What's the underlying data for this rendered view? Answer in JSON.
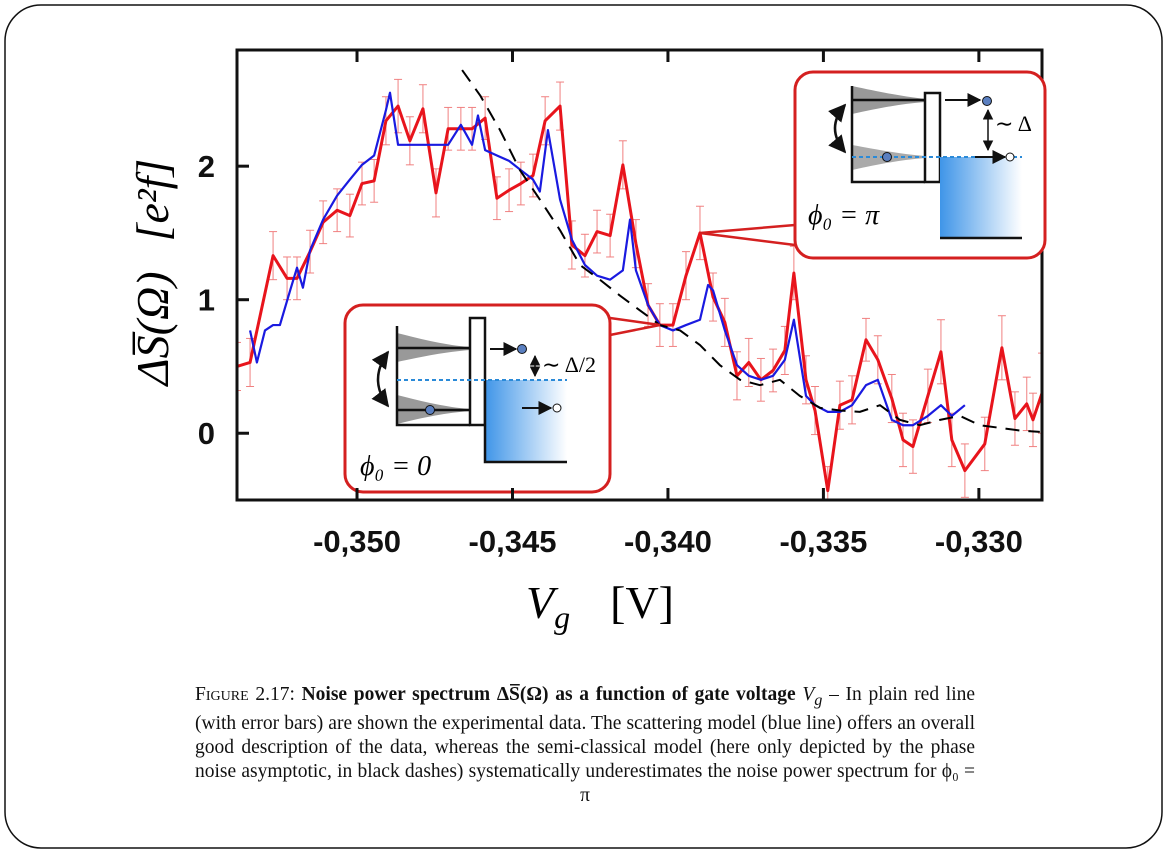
{
  "chart_data": {
    "type": "line",
    "xlabel": [
      "V",
      "g",
      "[V]"
    ],
    "ylabel": [
      "ΔS̅(Ω)",
      "[e²f]"
    ],
    "xlim": [
      -0.35386,
      -0.32797
    ],
    "ylim": [
      -0.5,
      2.87
    ],
    "xticks": [
      {
        "value": -0.35,
        "label": "-0,350"
      },
      {
        "value": -0.345,
        "label": "-0,345"
      },
      {
        "value": -0.34,
        "label": "-0,340"
      },
      {
        "value": -0.335,
        "label": "-0,335"
      },
      {
        "value": -0.33,
        "label": "-0,330"
      }
    ],
    "yticks": [
      0,
      1,
      2
    ],
    "annotations": [
      "∼ Δ",
      "ϕ₀ = π",
      "∼ Δ/2",
      "ϕ₀ = 0"
    ],
    "series": [
      {
        "color": "#e8141c",
        "error_color": "#f08080",
        "x": [
          -0.35386,
          -0.35344,
          -0.3527,
          -0.35225,
          -0.35193,
          -0.35151,
          -0.35109,
          -0.35064,
          -0.35023,
          -0.34984,
          -0.34945,
          -0.34907,
          -0.34868,
          -0.3483,
          -0.34788,
          -0.34746,
          -0.34707,
          -0.34666,
          -0.3463,
          -0.34588,
          -0.3455,
          -0.34511,
          -0.34473,
          -0.34434,
          -0.34395,
          -0.34347,
          -0.34309,
          -0.34267,
          -0.34228,
          -0.34186,
          -0.34145,
          -0.34103,
          -0.34064,
          -0.34026,
          -0.33984,
          -0.33942,
          -0.33897,
          -0.33855,
          -0.33817,
          -0.33778,
          -0.3374,
          -0.33701,
          -0.33662,
          -0.33624,
          -0.33595,
          -0.33556,
          -0.33527,
          -0.33486,
          -0.33447,
          -0.33408,
          -0.33363,
          -0.33325,
          -0.3328,
          -0.33244,
          -0.33212,
          -0.33164,
          -0.33122,
          -0.33087,
          -0.33045,
          -0.32981,
          -0.32926,
          -0.32884,
          -0.32846,
          -0.32826,
          -0.32797
        ],
        "values": [
          0.5,
          0.53,
          1.33,
          1.16,
          1.16,
          1.36,
          1.58,
          1.67,
          1.63,
          1.87,
          1.89,
          2.34,
          2.45,
          2.19,
          2.43,
          1.8,
          2.28,
          2.28,
          2.28,
          2.36,
          1.76,
          1.82,
          1.87,
          1.93,
          2.34,
          2.45,
          1.41,
          1.33,
          1.51,
          1.48,
          2.01,
          1.42,
          0.96,
          0.81,
          0.81,
          1.18,
          1.5,
          1.02,
          0.83,
          0.43,
          0.53,
          0.4,
          0.47,
          0.62,
          1.2,
          0.4,
          0.17,
          -0.43,
          0.21,
          0.25,
          0.7,
          0.55,
          0.26,
          -0.05,
          -0.1,
          0.28,
          0.61,
          -0.05,
          -0.28,
          -0.08,
          0.64,
          0.11,
          0.22,
          0.1,
          0.3
        ],
        "errors": [
          0.18,
          0.18,
          0.18,
          0.16,
          0.16,
          0.16,
          0.16,
          0.16,
          0.16,
          0.16,
          0.16,
          0.18,
          0.2,
          0.18,
          0.18,
          0.18,
          0.16,
          0.16,
          0.16,
          0.16,
          0.16,
          0.16,
          0.16,
          0.16,
          0.18,
          0.18,
          0.18,
          0.16,
          0.16,
          0.16,
          0.18,
          0.18,
          0.16,
          0.16,
          0.16,
          0.18,
          0.2,
          0.18,
          0.18,
          0.18,
          0.18,
          0.16,
          0.16,
          0.18,
          0.2,
          0.18,
          0.18,
          0.18,
          0.18,
          0.18,
          0.16,
          0.18,
          0.18,
          0.2,
          0.2,
          0.2,
          0.24,
          0.2,
          0.2,
          0.2,
          0.24,
          0.2,
          0.2,
          0.2,
          0.3
        ]
      },
      {
        "color": "#1a1ae0",
        "x": [
          -0.35344,
          -0.35322,
          -0.35296,
          -0.3527,
          -0.35248,
          -0.35215,
          -0.35193,
          -0.35174,
          -0.35151,
          -0.35109,
          -0.35064,
          -0.35023,
          -0.34984,
          -0.34945,
          -0.34907,
          -0.34894,
          -0.34868,
          -0.3483,
          -0.34788,
          -0.34746,
          -0.34707,
          -0.34666,
          -0.3463,
          -0.34611,
          -0.34588,
          -0.3455,
          -0.34511,
          -0.34473,
          -0.34434,
          -0.34412,
          -0.34386,
          -0.34347,
          -0.34309,
          -0.34267,
          -0.34228,
          -0.34186,
          -0.34145,
          -0.34122,
          -0.34103,
          -0.34064,
          -0.34026,
          -0.33984,
          -0.33942,
          -0.33897,
          -0.33871,
          -0.33855,
          -0.33817,
          -0.33778,
          -0.3374,
          -0.33701,
          -0.33662,
          -0.33624,
          -0.33595,
          -0.33556,
          -0.33527,
          -0.33486,
          -0.33447,
          -0.33408,
          -0.33363,
          -0.33325,
          -0.3328,
          -0.33244,
          -0.33212,
          -0.33164,
          -0.33122,
          -0.33087,
          -0.33045
        ],
        "values": [
          0.77,
          0.53,
          0.77,
          0.81,
          0.81,
          1.07,
          1.24,
          1.09,
          1.37,
          1.6,
          1.78,
          1.9,
          2.01,
          2.08,
          2.42,
          2.55,
          2.16,
          2.16,
          2.16,
          2.16,
          2.16,
          2.31,
          2.16,
          2.38,
          2.12,
          2.08,
          2.04,
          1.97,
          1.9,
          1.81,
          2.27,
          1.75,
          1.45,
          1.26,
          1.18,
          1.15,
          1.22,
          1.6,
          1.22,
          0.96,
          0.81,
          0.77,
          0.81,
          0.85,
          1.11,
          1.07,
          0.77,
          0.51,
          0.43,
          0.4,
          0.43,
          0.55,
          0.85,
          0.28,
          0.21,
          0.16,
          0.16,
          0.21,
          0.36,
          0.4,
          0.1,
          0.06,
          0.06,
          0.13,
          0.21,
          0.13,
          0.21
        ]
      },
      {
        "color": "#000000",
        "dashed": true,
        "x": [
          -0.34662,
          -0.34604,
          -0.3454,
          -0.34476,
          -0.34412,
          -0.34347,
          -0.34283,
          -0.34219,
          -0.34154,
          -0.3409,
          -0.34026,
          -0.33961,
          -0.33897,
          -0.33833,
          -0.33768,
          -0.33704,
          -0.3364,
          -0.33576,
          -0.33511,
          -0.33447,
          -0.33383,
          -0.33318,
          -0.33254,
          -0.3319,
          -0.33125,
          -0.33061,
          -0.32997,
          -0.32932,
          -0.32868,
          -0.32804
        ],
        "values": [
          2.72,
          2.53,
          2.27,
          1.97,
          1.75,
          1.52,
          1.26,
          1.15,
          1.03,
          0.92,
          0.81,
          0.77,
          0.66,
          0.51,
          0.4,
          0.36,
          0.4,
          0.28,
          0.19,
          0.17,
          0.16,
          0.21,
          0.1,
          0.06,
          0.1,
          0.13,
          0.06,
          0.04,
          0.02,
          0.01
        ]
      }
    ],
    "caption": {
      "label": "Figure 2.17:",
      "title": "Noise power spectrum ΔS̅(Ω) as a function of gate voltage",
      "subject": "V",
      "subject_sub": "g",
      "text": "– In plain red line (with error bars) are shown the experimental data. The scattering model (blue line) offers an overall good description of the data, whereas the semi-classical model (here only depicted by the phase noise asymptotic, in black dashes) systematically underestimates the noise power spectrum for ϕ₀ = π"
    }
  }
}
